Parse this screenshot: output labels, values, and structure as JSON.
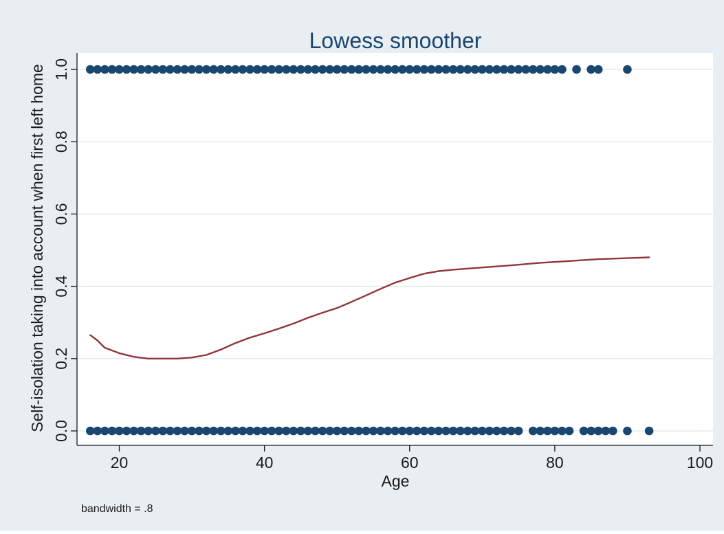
{
  "chart_data": {
    "type": "scatter",
    "title": "Lowess smoother",
    "xlabel": "Age",
    "ylabel": "Self-isolation taking into account when first left home",
    "note": "bandwidth = .8",
    "xlim": [
      16,
      100
    ],
    "ylim": [
      0,
      1.0
    ],
    "xticks": [
      20,
      40,
      60,
      80,
      100
    ],
    "yticks": [
      0.0,
      0.2,
      0.4,
      0.6,
      0.8,
      1.0
    ],
    "ytick_labels": [
      "0.0",
      "0.2",
      "0.4",
      "0.6",
      "0.8",
      "1.0"
    ],
    "grid": true,
    "colors": {
      "outer_background": "#e9eef3",
      "plot_background": "#ffffff",
      "gridline": "#e3ebf2",
      "points": "#1a476f",
      "lowess_line": "#90353b",
      "text": "#1a1a1a",
      "title": "#1a476f"
    },
    "series": [
      {
        "kind": "points",
        "x": [
          16,
          17,
          18,
          19,
          20,
          21,
          22,
          23,
          24,
          25,
          26,
          27,
          28,
          29,
          30,
          31,
          32,
          33,
          34,
          35,
          36,
          37,
          38,
          39,
          40,
          41,
          42,
          43,
          44,
          45,
          46,
          47,
          48,
          49,
          50,
          51,
          52,
          53,
          54,
          55,
          56,
          57,
          58,
          59,
          60,
          61,
          62,
          63,
          64,
          65,
          66,
          67,
          68,
          69,
          70,
          71,
          72,
          73,
          74,
          75,
          76,
          77,
          78,
          79,
          80,
          81,
          83,
          85,
          86,
          90
        ],
        "y": [
          1,
          1,
          1,
          1,
          1,
          1,
          1,
          1,
          1,
          1,
          1,
          1,
          1,
          1,
          1,
          1,
          1,
          1,
          1,
          1,
          1,
          1,
          1,
          1,
          1,
          1,
          1,
          1,
          1,
          1,
          1,
          1,
          1,
          1,
          1,
          1,
          1,
          1,
          1,
          1,
          1,
          1,
          1,
          1,
          1,
          1,
          1,
          1,
          1,
          1,
          1,
          1,
          1,
          1,
          1,
          1,
          1,
          1,
          1,
          1,
          1,
          1,
          1,
          1,
          1,
          1,
          1,
          1,
          1,
          1
        ]
      },
      {
        "kind": "points",
        "x": [
          16,
          17,
          18,
          19,
          20,
          21,
          22,
          23,
          24,
          25,
          26,
          27,
          28,
          29,
          30,
          31,
          32,
          33,
          34,
          35,
          36,
          37,
          38,
          39,
          40,
          41,
          42,
          43,
          44,
          45,
          46,
          47,
          48,
          49,
          50,
          51,
          52,
          53,
          54,
          55,
          56,
          57,
          58,
          59,
          60,
          61,
          62,
          63,
          64,
          65,
          66,
          67,
          68,
          69,
          70,
          71,
          72,
          73,
          74,
          75,
          77,
          78,
          79,
          80,
          81,
          82,
          84,
          85,
          86,
          87,
          88,
          90,
          93
        ],
        "y": [
          0,
          0,
          0,
          0,
          0,
          0,
          0,
          0,
          0,
          0,
          0,
          0,
          0,
          0,
          0,
          0,
          0,
          0,
          0,
          0,
          0,
          0,
          0,
          0,
          0,
          0,
          0,
          0,
          0,
          0,
          0,
          0,
          0,
          0,
          0,
          0,
          0,
          0,
          0,
          0,
          0,
          0,
          0,
          0,
          0,
          0,
          0,
          0,
          0,
          0,
          0,
          0,
          0,
          0,
          0,
          0,
          0,
          0,
          0,
          0,
          0,
          0,
          0,
          0,
          0,
          0,
          0,
          0,
          0,
          0,
          0,
          0,
          0
        ]
      },
      {
        "kind": "line",
        "x": [
          16,
          17,
          18,
          20,
          22,
          24,
          26,
          28,
          30,
          32,
          34,
          36,
          38,
          40,
          42,
          44,
          46,
          48,
          50,
          52,
          54,
          56,
          58,
          60,
          62,
          64,
          66,
          70,
          74,
          78,
          82,
          86,
          90,
          93
        ],
        "y": [
          0.265,
          0.25,
          0.23,
          0.215,
          0.205,
          0.2,
          0.2,
          0.2,
          0.203,
          0.21,
          0.225,
          0.243,
          0.258,
          0.27,
          0.283,
          0.297,
          0.313,
          0.327,
          0.34,
          0.357,
          0.375,
          0.393,
          0.41,
          0.423,
          0.435,
          0.442,
          0.446,
          0.452,
          0.458,
          0.465,
          0.47,
          0.475,
          0.478,
          0.48
        ]
      }
    ]
  }
}
